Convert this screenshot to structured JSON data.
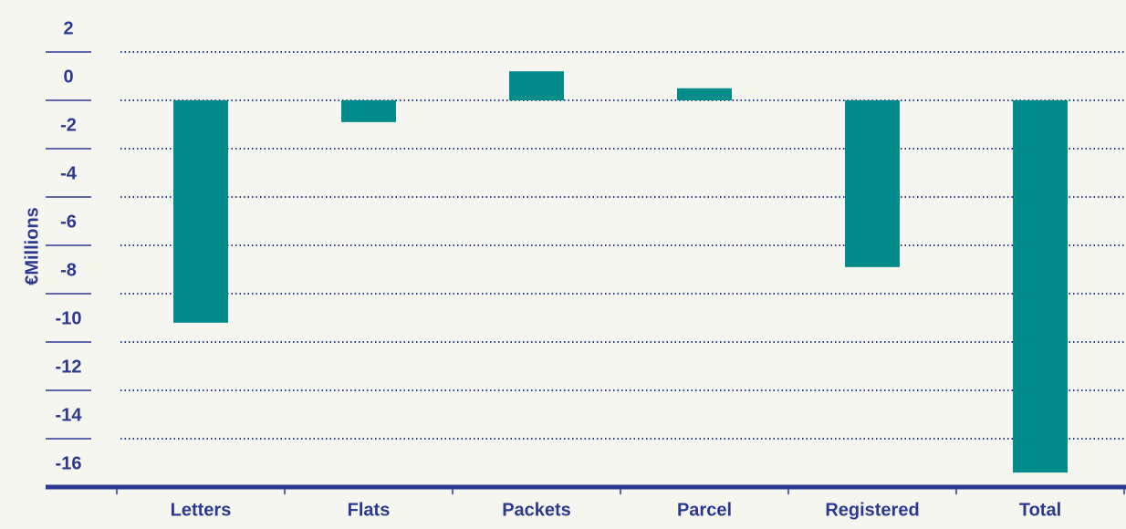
{
  "chart_data": {
    "type": "bar",
    "y_label": "€Millions",
    "categories": [
      "Letters",
      "Flats",
      "Packets",
      "Parcel",
      "Registered",
      "Total"
    ],
    "values": [
      -9.2,
      -0.9,
      1.2,
      0.5,
      -6.9,
      -15.4
    ],
    "color": "#008b8b",
    "ylim": [
      -16,
      2
    ],
    "yticks": [
      2,
      0,
      -2,
      -4,
      -6,
      -8,
      -10,
      -12,
      -14,
      -16
    ],
    "grid": true
  }
}
